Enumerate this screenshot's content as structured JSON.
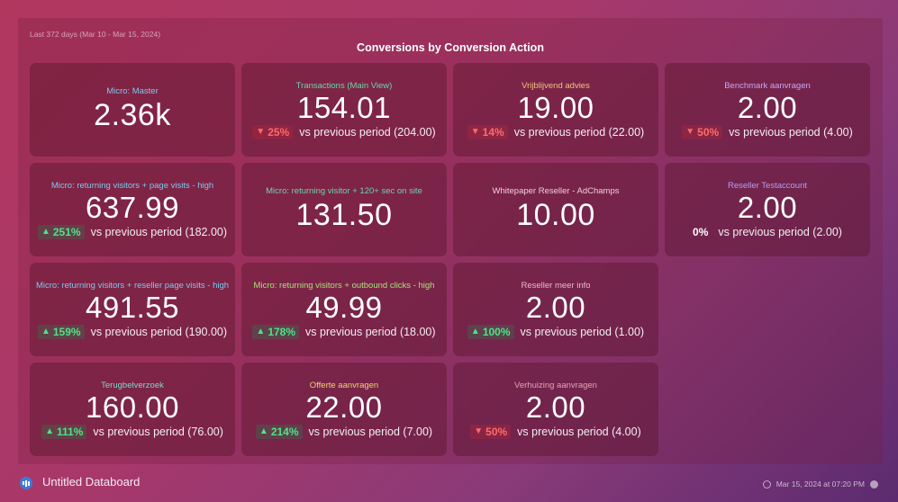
{
  "panel": {
    "date_range": "Last 372 days (Mar 10 - Mar 15, 2024)",
    "title": "Conversions by Conversion Action"
  },
  "cards": [
    {
      "title": "Micro: Master",
      "title_color": "#7fc8f0",
      "value": "2.36k",
      "badge": "",
      "direction": "",
      "compare": ""
    },
    {
      "title": "Transactions (Main View)",
      "title_color": "#6fd3a8",
      "value": "154.01",
      "badge": "25%",
      "direction": "down",
      "compare": "vs previous period (204.00)"
    },
    {
      "title": "Vrijblijvend advies",
      "title_color": "#f2c47e",
      "value": "19.00",
      "badge": "14%",
      "direction": "down",
      "compare": "vs previous period (22.00)"
    },
    {
      "title": "Benchmark aanvragen",
      "title_color": "#c9a6f0",
      "value": "2.00",
      "badge": "50%",
      "direction": "down",
      "compare": "vs previous period (4.00)"
    },
    {
      "title": "Micro: returning visitors + page visits - high",
      "title_color": "#7fc8f0",
      "value": "637.99",
      "badge": "251%",
      "direction": "up",
      "compare": "vs previous period (182.00)"
    },
    {
      "title": "Micro: returning visitor + 120+ sec on site",
      "title_color": "#6fd3a8",
      "value": "131.50",
      "badge": "",
      "direction": "",
      "compare": ""
    },
    {
      "title": "Whitepaper Reseller - AdChamps",
      "title_color": "#f0d0d8",
      "value": "10.00",
      "badge": "",
      "direction": "",
      "compare": ""
    },
    {
      "title": "Reseller Testaccount",
      "title_color": "#b49ef5",
      "value": "2.00",
      "badge": "0%",
      "direction": "flat",
      "compare": "vs previous period (2.00)"
    },
    {
      "title": "Micro: returning visitors + reseller page visits - high",
      "title_color": "#7fc8f0",
      "value": "491.55",
      "badge": "159%",
      "direction": "up",
      "compare": "vs previous period (190.00)"
    },
    {
      "title": "Micro: returning visitors + outbound clicks - high",
      "title_color": "#a9e07a",
      "value": "49.99",
      "badge": "178%",
      "direction": "up",
      "compare": "vs previous period (18.00)"
    },
    {
      "title": "Reseller meer info",
      "title_color": "#f0b8c8",
      "value": "2.00",
      "badge": "100%",
      "direction": "up",
      "compare": "vs previous period (1.00)"
    },
    {
      "title": "Terugbelverzoek",
      "title_color": "#7fd8c8",
      "value": "160.00",
      "badge": "111%",
      "direction": "up",
      "compare": "vs previous period (76.00)"
    },
    {
      "title": "Offerte aanvragen",
      "title_color": "#f2d36e",
      "value": "22.00",
      "badge": "214%",
      "direction": "up",
      "compare": "vs previous period (7.00)"
    },
    {
      "title": "Verhuizing aanvragen",
      "title_color": "#e8a0b8",
      "value": "2.00",
      "badge": "50%",
      "direction": "down",
      "compare": "vs previous period (4.00)"
    }
  ],
  "footer": {
    "title": "Untitled Databoard",
    "timestamp": "Mar 15, 2024 at 07:20 PM",
    "logo_icon": "databox-logo-icon",
    "refresh_icon": "refresh-icon",
    "info_icon": "info-icon"
  }
}
